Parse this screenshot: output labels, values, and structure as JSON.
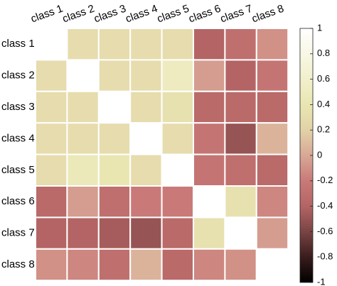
{
  "chart_data": {
    "type": "heatmap",
    "categories": [
      "class 1",
      "class 2",
      "class 3",
      "class 4",
      "class 5",
      "class 6",
      "class 7",
      "class 8"
    ],
    "matrix": [
      [
        1,
        0.3,
        0.3,
        0.3,
        0.3,
        -0.4,
        -0.3,
        -0.1
      ],
      [
        0.3,
        1,
        0.3,
        0.3,
        0.5,
        -0.05,
        -0.4,
        -0.25
      ],
      [
        0.3,
        0.3,
        1,
        0.3,
        0.35,
        -0.35,
        -0.35,
        -0.35
      ],
      [
        0.3,
        0.3,
        0.3,
        1,
        0.3,
        -0.25,
        -0.5,
        0.05
      ],
      [
        0.3,
        0.45,
        0.4,
        0.3,
        1,
        -0.25,
        -0.3,
        -0.35
      ],
      [
        -0.35,
        -0.05,
        -0.3,
        -0.2,
        -0.2,
        1,
        0.35,
        -0.15
      ],
      [
        -0.4,
        -0.4,
        -0.45,
        -0.5,
        -0.35,
        0.35,
        1,
        -0.05
      ],
      [
        -0.1,
        -0.15,
        -0.3,
        0.05,
        -0.35,
        -0.15,
        -0.1,
        1
      ]
    ],
    "colormap": [
      {
        "value": -1,
        "color": "#000000"
      },
      {
        "value": -0.8,
        "color": "#3a1c1c"
      },
      {
        "value": -0.6,
        "color": "#7a4444"
      },
      {
        "value": -0.4,
        "color": "#b46464"
      },
      {
        "value": -0.2,
        "color": "#c97a78"
      },
      {
        "value": 0,
        "color": "#d8a896"
      },
      {
        "value": 0.2,
        "color": "#e2d2a8"
      },
      {
        "value": 0.4,
        "color": "#e9e6b2"
      },
      {
        "value": 0.6,
        "color": "#f1f0cc"
      },
      {
        "value": 1,
        "color": "#ffffff"
      }
    ],
    "clim": [
      -1,
      1
    ],
    "cticks": [
      1,
      0.8,
      0.6,
      0.4,
      0.2,
      0,
      -0.2,
      -0.4,
      -0.6,
      -0.8,
      -1
    ]
  }
}
